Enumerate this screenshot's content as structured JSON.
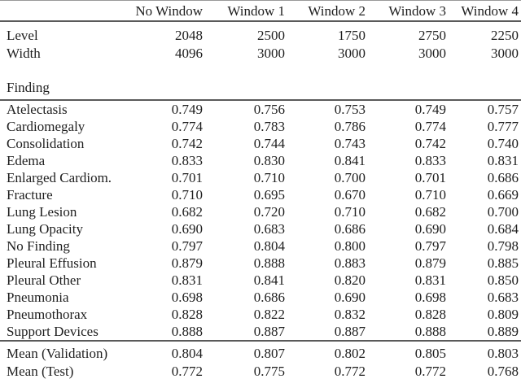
{
  "table": {
    "columns": [
      "No Window",
      "Window 1",
      "Window 2",
      "Window 3",
      "Window 4"
    ],
    "settings": [
      {
        "label": "Level",
        "values": [
          "2048",
          "2500",
          "1750",
          "2750",
          "2250"
        ],
        "bold": []
      },
      {
        "label": "Width",
        "values": [
          "4096",
          "3000",
          "3000",
          "3000",
          "3000"
        ],
        "bold": []
      }
    ],
    "section_label": "Finding",
    "findings": [
      {
        "label": "Atelectasis",
        "values": [
          "0.749",
          "0.756",
          "0.753",
          "0.749",
          "0.757"
        ],
        "bold": [
          4
        ]
      },
      {
        "label": "Cardiomegaly",
        "values": [
          "0.774",
          "0.783",
          "0.786",
          "0.774",
          "0.777"
        ],
        "bold": [
          2
        ]
      },
      {
        "label": "Consolidation",
        "values": [
          "0.742",
          "0.744",
          "0.743",
          "0.742",
          "0.740"
        ],
        "bold": [
          1
        ]
      },
      {
        "label": "Edema",
        "values": [
          "0.833",
          "0.830",
          "0.841",
          "0.833",
          "0.831"
        ],
        "bold": [
          2
        ]
      },
      {
        "label": "Enlarged Cardiom.",
        "values": [
          "0.701",
          "0.710",
          "0.700",
          "0.701",
          "0.686"
        ],
        "bold": [
          1
        ]
      },
      {
        "label": "Fracture",
        "values": [
          "0.710",
          "0.695",
          "0.670",
          "0.710",
          "0.669"
        ],
        "bold": [
          0,
          3
        ]
      },
      {
        "label": "Lung Lesion",
        "values": [
          "0.682",
          "0.720",
          "0.710",
          "0.682",
          "0.700"
        ],
        "bold": [
          1
        ]
      },
      {
        "label": "Lung Opacity",
        "values": [
          "0.690",
          "0.683",
          "0.686",
          "0.690",
          "0.684"
        ],
        "bold": [
          0,
          3
        ]
      },
      {
        "label": "No Finding",
        "values": [
          "0.797",
          "0.804",
          "0.800",
          "0.797",
          "0.798"
        ],
        "bold": [
          1
        ]
      },
      {
        "label": "Pleural Effusion",
        "values": [
          "0.879",
          "0.888",
          "0.883",
          "0.879",
          "0.885"
        ],
        "bold": [
          1
        ]
      },
      {
        "label": "Pleural Other",
        "values": [
          "0.831",
          "0.841",
          "0.820",
          "0.831",
          "0.850"
        ],
        "bold": [
          4
        ]
      },
      {
        "label": "Pneumonia",
        "values": [
          "0.698",
          "0.686",
          "0.690",
          "0.698",
          "0.683"
        ],
        "bold": [
          0,
          3
        ]
      },
      {
        "label": "Pneumothorax",
        "values": [
          "0.828",
          "0.822",
          "0.832",
          "0.828",
          "0.809"
        ],
        "bold": [
          2
        ]
      },
      {
        "label": "Support Devices",
        "values": [
          "0.888",
          "0.887",
          "0.887",
          "0.888",
          "0.889"
        ],
        "bold": [
          4
        ]
      }
    ],
    "means": [
      {
        "label": "Mean (Validation)",
        "values": [
          "0.804",
          "0.807",
          "0.802",
          "0.805",
          "0.803"
        ],
        "bold": [
          1
        ]
      },
      {
        "label": "Mean (Test)",
        "values": [
          "0.772",
          "0.775",
          "0.772",
          "0.772",
          "0.768"
        ],
        "bold": [
          1
        ]
      }
    ]
  }
}
